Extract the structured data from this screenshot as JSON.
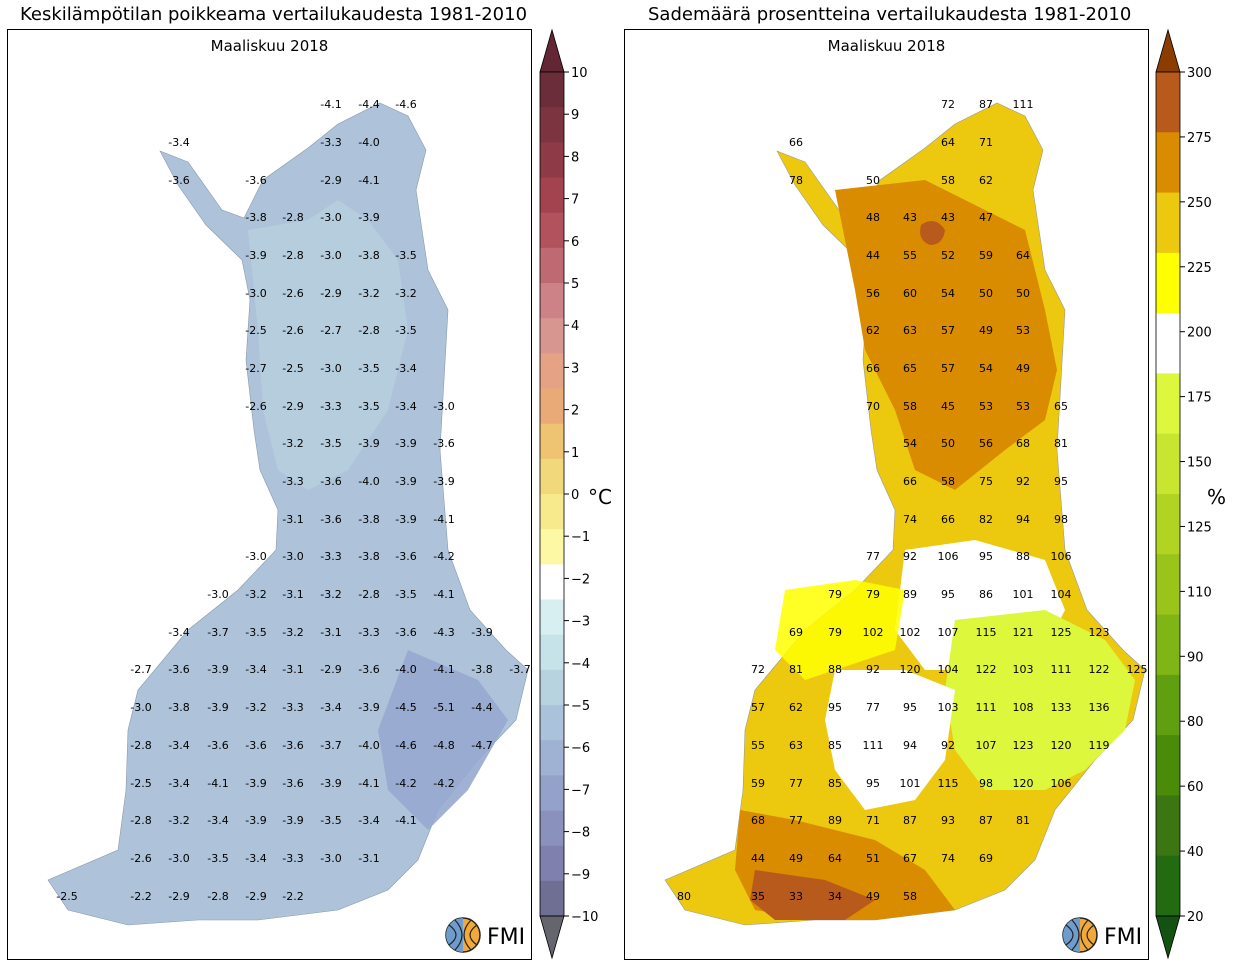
{
  "chart_data": [
    {
      "type": "heatmap",
      "title": "Keskilämpötilan poikkeama vertailukaudesta 1981-2010",
      "subtitle": "Maaliskuu 2018",
      "colorbar": {
        "unit": "°C",
        "ticks": [
          "10",
          "9",
          "8",
          "7",
          "6",
          "5",
          "4",
          "3",
          "2",
          "1",
          "0",
          "−1",
          "−2",
          "−3",
          "−4",
          "−5",
          "−6",
          "−7",
          "−8",
          "−9",
          "−10"
        ],
        "range": [
          -10,
          10
        ]
      },
      "logo_text": "FMI",
      "values": [
        "-4.1",
        "-4.4",
        "-4.6",
        "-3.4",
        "-3.3",
        "-4.0",
        "-3.6",
        "-3.6",
        "-2.9",
        "-4.1",
        "-3.8",
        "-2.8",
        "-3.0",
        "-3.9",
        "-3.9",
        "-2.8",
        "-3.0",
        "-3.8",
        "-3.5",
        "-3.0",
        "-2.6",
        "-2.9",
        "-3.2",
        "-3.2",
        "-2.5",
        "-2.6",
        "-2.7",
        "-2.8",
        "-3.5",
        "-2.7",
        "-2.5",
        "-3.0",
        "-3.5",
        "-3.4",
        "-2.6",
        "-2.9",
        "-3.3",
        "-3.5",
        "-3.4",
        "-3.0",
        "-3.2",
        "-3.5",
        "-3.9",
        "-3.9",
        "-3.6",
        "-3.3",
        "-3.6",
        "-4.0",
        "-3.9",
        "-3.9",
        "-3.1",
        "-3.6",
        "-3.8",
        "-3.9",
        "-4.1",
        "-3.0",
        "-3.0",
        "-3.3",
        "-3.8",
        "-3.6",
        "-4.2",
        "-3.0",
        "-3.2",
        "-3.1",
        "-3.2",
        "-2.8",
        "-3.5",
        "-4.1",
        "-3.4",
        "-3.7",
        "-3.5",
        "-3.2",
        "-3.1",
        "-3.3",
        "-3.6",
        "-4.3",
        "-3.9",
        "-2.7",
        "-3.6",
        "-3.9",
        "-3.4",
        "-3.1",
        "-2.9",
        "-3.6",
        "-4.0",
        "-4.1",
        "-3.8",
        "-3.7",
        "-3.0",
        "-3.8",
        "-3.9",
        "-3.2",
        "-3.3",
        "-3.4",
        "-3.9",
        "-4.5",
        "-5.1",
        "-4.4",
        "-2.8",
        "-3.4",
        "-3.6",
        "-3.6",
        "-3.6",
        "-3.7",
        "-4.0",
        "-4.6",
        "-4.8",
        "-4.7",
        "-2.5",
        "-3.4",
        "-4.1",
        "-3.9",
        "-3.6",
        "-3.9",
        "-4.1",
        "-4.2",
        "-4.2",
        "-2.8",
        "-3.2",
        "-3.4",
        "-3.9",
        "-3.9",
        "-3.5",
        "-3.4",
        "-4.1",
        "-2.6",
        "-3.0",
        "-3.5",
        "-3.4",
        "-3.3",
        "-3.0",
        "-3.1",
        "-2.5",
        "-2.2",
        "-2.9",
        "-2.8",
        "-2.9",
        "-2.2"
      ]
    },
    {
      "type": "heatmap",
      "title": "Sademäärä prosentteina vertailukaudesta 1981-2010",
      "subtitle": "Maaliskuu 2018",
      "colorbar": {
        "unit": "%",
        "ticks": [
          "300",
          "275",
          "250",
          "225",
          "200",
          "175",
          "150",
          "125",
          "110",
          "90",
          "80",
          "60",
          "40",
          "20"
        ],
        "range": [
          20,
          300
        ]
      },
      "logo_text": "FMI",
      "values": [
        "72",
        "87",
        "111",
        "66",
        "64",
        "71",
        "78",
        "50",
        "58",
        "62",
        "48",
        "43",
        "43",
        "47",
        "44",
        "55",
        "52",
        "59",
        "64",
        "56",
        "60",
        "54",
        "50",
        "50",
        "62",
        "63",
        "57",
        "49",
        "53",
        "66",
        "65",
        "57",
        "54",
        "49",
        "70",
        "58",
        "45",
        "53",
        "53",
        "65",
        "54",
        "50",
        "56",
        "68",
        "81",
        "66",
        "58",
        "75",
        "92",
        "95",
        "74",
        "66",
        "82",
        "94",
        "98",
        "77",
        "92",
        "106",
        "95",
        "88",
        "106",
        "79",
        "79",
        "89",
        "95",
        "86",
        "101",
        "104",
        "69",
        "79",
        "102",
        "102",
        "107",
        "115",
        "121",
        "125",
        "123",
        "72",
        "81",
        "88",
        "92",
        "120",
        "104",
        "122",
        "103",
        "111",
        "122",
        "125",
        "57",
        "62",
        "95",
        "77",
        "95",
        "103",
        "111",
        "108",
        "133",
        "136",
        "55",
        "63",
        "85",
        "111",
        "94",
        "92",
        "107",
        "123",
        "120",
        "119",
        "59",
        "77",
        "85",
        "95",
        "101",
        "115",
        "98",
        "120",
        "106",
        "68",
        "77",
        "89",
        "71",
        "87",
        "93",
        "87",
        "81",
        "44",
        "49",
        "64",
        "51",
        "67",
        "74",
        "69",
        "80",
        "35",
        "33",
        "34",
        "49",
        "58"
      ]
    }
  ],
  "colors": {
    "temp_scale": [
      "#632634",
      "#6b2d3a",
      "#7d3441",
      "#8f3a47",
      "#a3434f",
      "#b2525d",
      "#bf6a72",
      "#cc8286",
      "#d89690",
      "#e6a285",
      "#e9aa78",
      "#eec371",
      "#f1d87a",
      "#f7ea8c",
      "#fcf8a3",
      "#ffffff",
      "#d8eff2",
      "#c5e3e8",
      "#b7d3df",
      "#aac3da",
      "#9fb2d4",
      "#94a2c9",
      "#8b91bd",
      "#7f80ad",
      "#6f6f94",
      "#65656e"
    ],
    "precip_scale": [
      "#8b3d00",
      "#b85a1b",
      "#d98c00",
      "#ecc90f",
      "#ffff00",
      "#ffffff",
      "#ddf73d",
      "#c8e630",
      "#b0d421",
      "#9ac419",
      "#80b516",
      "#5f9f10",
      "#4a8c0a",
      "#3b7612",
      "#226b11",
      "#145212"
    ]
  }
}
